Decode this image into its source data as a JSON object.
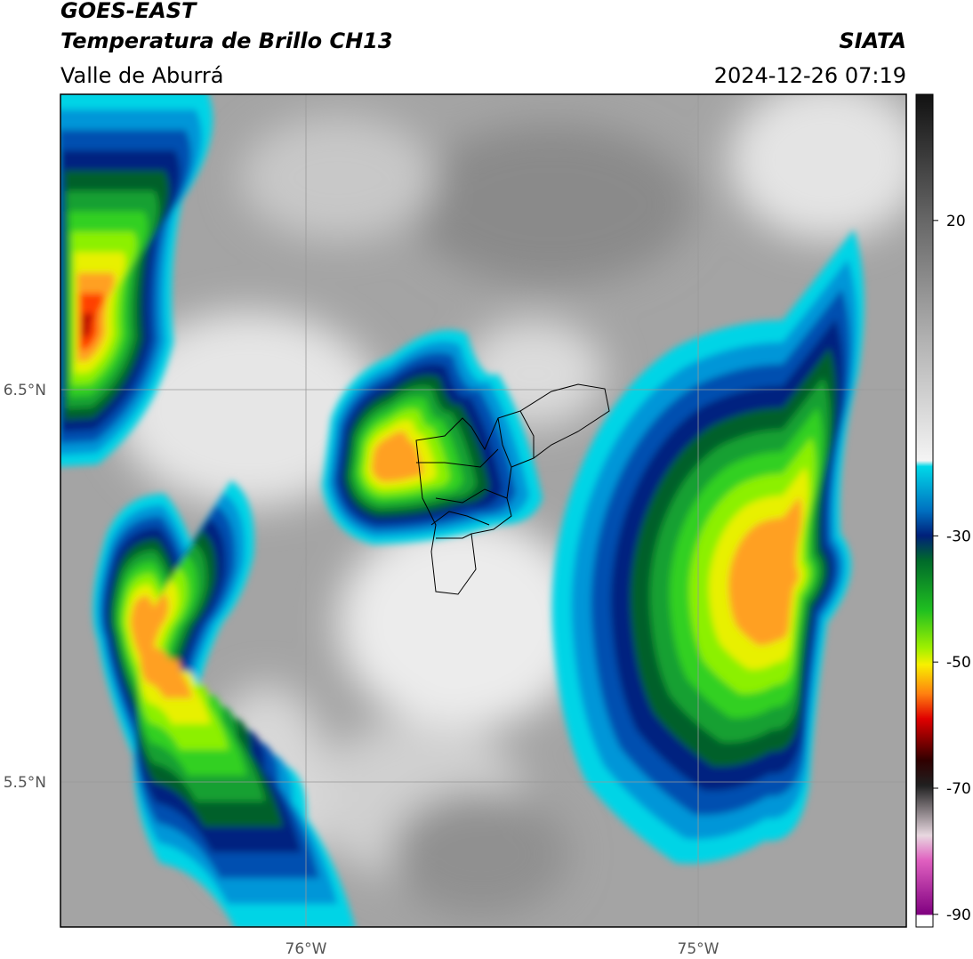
{
  "header": {
    "satellite": "GOES-EAST",
    "product": "Temperatura de Brillo CH13",
    "region": "Valle de Aburrá",
    "source": "SIATA",
    "datetime": "2024-12-26 07:19"
  },
  "map": {
    "lat_labels": [
      "6.5°N",
      "5.5°N"
    ],
    "lon_labels": [
      "76°W",
      "75°W"
    ]
  },
  "colorbar": {
    "range": [
      -92,
      40
    ],
    "ticks": [
      20,
      -30,
      -50,
      -70,
      -90
    ]
  }
}
